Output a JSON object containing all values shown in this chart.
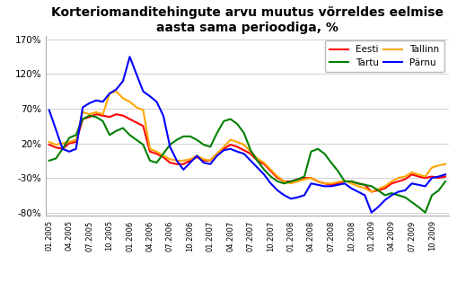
{
  "title": "Korteriomanditehingute arvu muutus võrreldes eelmise\naasta sama perioodiga, %",
  "title_fontsize": 10,
  "legend_entries": [
    "Eesti",
    "Tallinn",
    "Tartu",
    "Pärnu"
  ],
  "colors": [
    "#FF0000",
    "#FFA500",
    "#008000",
    "#0000FF"
  ],
  "ylim": [
    -0.85,
    1.75
  ],
  "yticks": [
    -0.8,
    -0.3,
    0.2,
    0.7,
    1.2,
    1.7
  ],
  "ytick_labels": [
    "-80%",
    "-30%",
    "20%",
    "70%",
    "120%",
    "170%"
  ],
  "eesti": [
    0.18,
    0.14,
    0.12,
    0.2,
    0.22,
    0.55,
    0.58,
    0.62,
    0.6,
    0.58,
    0.62,
    0.6,
    0.55,
    0.5,
    0.45,
    0.08,
    0.05,
    0.0,
    -0.08,
    -0.1,
    -0.1,
    -0.05,
    0.0,
    -0.05,
    -0.05,
    0.05,
    0.12,
    0.18,
    0.15,
    0.1,
    0.05,
    -0.05,
    -0.1,
    -0.2,
    -0.3,
    -0.35,
    -0.35,
    -0.32,
    -0.3,
    -0.3,
    -0.35,
    -0.38,
    -0.4,
    -0.38,
    -0.35,
    -0.35,
    -0.38,
    -0.4,
    -0.5,
    -0.48,
    -0.45,
    -0.38,
    -0.35,
    -0.32,
    -0.25,
    -0.28,
    -0.3,
    -0.28,
    -0.3,
    -0.28
  ],
  "tallinn": [
    0.22,
    0.18,
    0.2,
    0.22,
    0.25,
    0.65,
    0.62,
    0.65,
    0.62,
    0.92,
    0.95,
    0.85,
    0.8,
    0.72,
    0.68,
    0.12,
    0.08,
    0.02,
    -0.03,
    -0.05,
    -0.05,
    -0.03,
    0.02,
    -0.03,
    -0.05,
    0.05,
    0.15,
    0.25,
    0.22,
    0.18,
    0.08,
    -0.02,
    -0.08,
    -0.18,
    -0.28,
    -0.35,
    -0.38,
    -0.35,
    -0.32,
    -0.3,
    -0.35,
    -0.38,
    -0.38,
    -0.36,
    -0.34,
    -0.38,
    -0.42,
    -0.45,
    -0.5,
    -0.46,
    -0.42,
    -0.35,
    -0.3,
    -0.28,
    -0.22,
    -0.25,
    -0.28,
    -0.15,
    -0.12,
    -0.1
  ],
  "tartu": [
    -0.05,
    -0.02,
    0.12,
    0.28,
    0.32,
    0.55,
    0.6,
    0.58,
    0.52,
    0.32,
    0.38,
    0.42,
    0.32,
    0.25,
    0.18,
    -0.05,
    -0.08,
    0.05,
    0.18,
    0.25,
    0.3,
    0.3,
    0.25,
    0.18,
    0.15,
    0.35,
    0.52,
    0.55,
    0.48,
    0.35,
    0.1,
    -0.05,
    -0.18,
    -0.28,
    -0.35,
    -0.38,
    -0.35,
    -0.32,
    -0.28,
    0.08,
    0.12,
    0.05,
    -0.08,
    -0.2,
    -0.35,
    -0.35,
    -0.38,
    -0.4,
    -0.42,
    -0.48,
    -0.55,
    -0.52,
    -0.55,
    -0.58,
    -0.65,
    -0.72,
    -0.8,
    -0.55,
    -0.48,
    -0.35
  ],
  "parnu": [
    0.68,
    0.4,
    0.12,
    0.08,
    0.12,
    0.72,
    0.78,
    0.82,
    0.8,
    0.92,
    0.98,
    1.1,
    1.45,
    1.2,
    0.95,
    0.88,
    0.8,
    0.6,
    0.15,
    -0.05,
    -0.18,
    -0.08,
    0.02,
    -0.08,
    -0.1,
    0.02,
    0.1,
    0.12,
    0.08,
    0.05,
    -0.05,
    -0.15,
    -0.25,
    -0.38,
    -0.48,
    -0.55,
    -0.6,
    -0.58,
    -0.55,
    -0.38,
    -0.4,
    -0.42,
    -0.42,
    -0.4,
    -0.38,
    -0.45,
    -0.5,
    -0.55,
    -0.8,
    -0.72,
    -0.62,
    -0.55,
    -0.5,
    -0.48,
    -0.38,
    -0.4,
    -0.42,
    -0.3,
    -0.28,
    -0.25
  ]
}
